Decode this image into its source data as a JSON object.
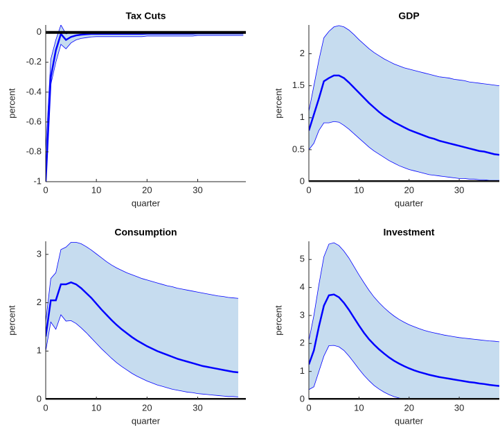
{
  "chart_data": [
    {
      "type": "line",
      "title": "Tax Cuts",
      "xlabel": "quarter",
      "ylabel": "percent",
      "x": [
        0,
        1,
        2,
        3,
        4,
        5,
        6,
        7,
        8,
        9,
        10,
        11,
        12,
        13,
        14,
        15,
        16,
        17,
        18,
        19,
        20,
        21,
        22,
        23,
        24,
        25,
        26,
        27,
        28,
        29,
        30,
        31,
        32,
        33,
        34,
        35,
        36,
        37,
        38,
        39
      ],
      "values": [
        -1,
        -0.3,
        -0.12,
        -0.01,
        -0.05,
        -0.03,
        -0.02,
        -0.015,
        -0.012,
        -0.01,
        -0.01,
        -0.01,
        -0.01,
        -0.01,
        -0.01,
        -0.01,
        -0.01,
        -0.01,
        -0.01,
        -0.01,
        -0.008,
        -0.008,
        -0.008,
        -0.008,
        -0.008,
        -0.008,
        -0.008,
        -0.008,
        -0.008,
        -0.008,
        -0.006,
        -0.006,
        -0.006,
        -0.006,
        -0.006,
        -0.006,
        -0.006,
        -0.006,
        -0.006,
        -0.006
      ],
      "upper": [
        -0.8,
        -0.18,
        -0.05,
        0.05,
        -0.01,
        0,
        0.005,
        0.005,
        0.005,
        0.006,
        0.005,
        0.005,
        0.005,
        0.005,
        0.005,
        0.005,
        0.005,
        0.005,
        0.005,
        0.005,
        0.005,
        0.005,
        0.005,
        0.005,
        0.005,
        0.005,
        0.005,
        0.005,
        0.005,
        0.005,
        0.005,
        0.005,
        0.005,
        0.005,
        0.005,
        0.005,
        0.005,
        0.005,
        0.005,
        0.005
      ],
      "lower": [
        -1,
        -0.35,
        -0.2,
        -0.08,
        -0.11,
        -0.07,
        -0.05,
        -0.04,
        -0.035,
        -0.03,
        -0.028,
        -0.028,
        -0.028,
        -0.028,
        -0.028,
        -0.028,
        -0.028,
        -0.028,
        -0.028,
        -0.028,
        -0.024,
        -0.024,
        -0.024,
        -0.024,
        -0.024,
        -0.024,
        -0.024,
        -0.024,
        -0.024,
        -0.024,
        -0.02,
        -0.02,
        -0.02,
        -0.02,
        -0.02,
        -0.02,
        -0.02,
        -0.02,
        -0.02,
        -0.02
      ],
      "xlim": [
        0,
        39.5
      ],
      "xticks": [
        0,
        10,
        20,
        30
      ],
      "ylim": [
        -1,
        0.05
      ],
      "yticks": [
        -1,
        -0.8,
        -0.6,
        -0.4,
        -0.2,
        0
      ],
      "zero_line": 0,
      "color": "#0000ff",
      "band_color": "#c6dcef"
    },
    {
      "type": "line",
      "title": "GDP",
      "xlabel": "quarter",
      "ylabel": "percent",
      "x": [
        0,
        1,
        2,
        3,
        4,
        5,
        6,
        7,
        8,
        9,
        10,
        11,
        12,
        13,
        14,
        15,
        16,
        17,
        18,
        19,
        20,
        21,
        22,
        23,
        24,
        25,
        26,
        27,
        28,
        29,
        30,
        31,
        32,
        33,
        34,
        35,
        36,
        37,
        38
      ],
      "values": [
        0.8,
        1.05,
        1.3,
        1.57,
        1.62,
        1.66,
        1.66,
        1.62,
        1.55,
        1.47,
        1.39,
        1.31,
        1.23,
        1.16,
        1.09,
        1.03,
        0.98,
        0.93,
        0.89,
        0.85,
        0.81,
        0.78,
        0.75,
        0.72,
        0.69,
        0.67,
        0.64,
        0.62,
        0.6,
        0.58,
        0.56,
        0.54,
        0.52,
        0.5,
        0.48,
        0.47,
        0.45,
        0.43,
        0.42
      ],
      "upper": [
        1.1,
        1.5,
        1.9,
        2.25,
        2.35,
        2.42,
        2.44,
        2.42,
        2.37,
        2.3,
        2.22,
        2.15,
        2.08,
        2.02,
        1.97,
        1.92,
        1.88,
        1.84,
        1.81,
        1.78,
        1.76,
        1.74,
        1.72,
        1.7,
        1.68,
        1.66,
        1.64,
        1.63,
        1.62,
        1.6,
        1.59,
        1.58,
        1.56,
        1.55,
        1.54,
        1.53,
        1.52,
        1.51,
        1.5
      ],
      "lower": [
        0.5,
        0.6,
        0.8,
        0.92,
        0.92,
        0.94,
        0.93,
        0.88,
        0.82,
        0.75,
        0.68,
        0.61,
        0.54,
        0.48,
        0.43,
        0.38,
        0.33,
        0.29,
        0.25,
        0.22,
        0.19,
        0.17,
        0.15,
        0.13,
        0.11,
        0.1,
        0.09,
        0.08,
        0.07,
        0.06,
        0.05,
        0.05,
        0.04,
        0.04,
        0.03,
        0.03,
        0.02,
        0.02,
        0.02
      ],
      "xlim": [
        0,
        38
      ],
      "xticks": [
        0,
        10,
        20,
        30
      ],
      "ylim": [
        0,
        2.45
      ],
      "yticks": [
        0,
        0.5,
        1,
        1.5,
        2
      ],
      "zero_line": 0,
      "color": "#0000ff",
      "band_color": "#c6dcef"
    },
    {
      "type": "line",
      "title": "Consumption",
      "xlabel": "quarter",
      "ylabel": "percent",
      "x": [
        0,
        1,
        2,
        3,
        4,
        5,
        6,
        7,
        8,
        9,
        10,
        11,
        12,
        13,
        14,
        15,
        16,
        17,
        18,
        19,
        20,
        21,
        22,
        23,
        24,
        25,
        26,
        27,
        28,
        29,
        30,
        31,
        32,
        33,
        34,
        35,
        36,
        37,
        38
      ],
      "values": [
        1.3,
        2.05,
        2.05,
        2.38,
        2.38,
        2.42,
        2.38,
        2.3,
        2.2,
        2.1,
        1.98,
        1.86,
        1.75,
        1.64,
        1.54,
        1.45,
        1.37,
        1.29,
        1.22,
        1.16,
        1.1,
        1.05,
        1.0,
        0.96,
        0.92,
        0.88,
        0.84,
        0.81,
        0.78,
        0.75,
        0.72,
        0.69,
        0.67,
        0.65,
        0.63,
        0.61,
        0.59,
        0.57,
        0.56
      ],
      "upper": [
        1.6,
        2.5,
        2.62,
        3.1,
        3.15,
        3.25,
        3.25,
        3.22,
        3.16,
        3.09,
        3.01,
        2.93,
        2.85,
        2.78,
        2.72,
        2.67,
        2.62,
        2.58,
        2.54,
        2.5,
        2.47,
        2.44,
        2.41,
        2.38,
        2.35,
        2.33,
        2.3,
        2.28,
        2.26,
        2.24,
        2.22,
        2.2,
        2.18,
        2.16,
        2.14,
        2.13,
        2.11,
        2.1,
        2.09
      ],
      "lower": [
        1.0,
        1.6,
        1.45,
        1.75,
        1.62,
        1.63,
        1.57,
        1.48,
        1.38,
        1.27,
        1.16,
        1.05,
        0.95,
        0.85,
        0.76,
        0.68,
        0.61,
        0.54,
        0.48,
        0.43,
        0.38,
        0.34,
        0.3,
        0.27,
        0.24,
        0.21,
        0.19,
        0.17,
        0.15,
        0.14,
        0.12,
        0.11,
        0.1,
        0.09,
        0.08,
        0.07,
        0.06,
        0.06,
        0.05
      ],
      "xlim": [
        0,
        39.5
      ],
      "xticks": [
        0,
        10,
        20,
        30
      ],
      "ylim": [
        0,
        3.27
      ],
      "yticks": [
        0,
        1,
        2,
        3
      ],
      "zero_line": 0,
      "color": "#0000ff",
      "band_color": "#c6dcef"
    },
    {
      "type": "line",
      "title": "Investment",
      "xlabel": "quarter",
      "ylabel": "percent",
      "x": [
        0,
        1,
        2,
        3,
        4,
        5,
        6,
        7,
        8,
        9,
        10,
        11,
        12,
        13,
        14,
        15,
        16,
        17,
        18,
        19,
        20,
        21,
        22,
        23,
        24,
        25,
        26,
        27,
        28,
        29,
        30,
        31,
        32,
        33,
        34,
        35,
        36,
        37,
        38
      ],
      "values": [
        1.25,
        1.75,
        2.6,
        3.35,
        3.72,
        3.75,
        3.65,
        3.45,
        3.2,
        2.92,
        2.64,
        2.38,
        2.15,
        1.96,
        1.79,
        1.64,
        1.5,
        1.38,
        1.28,
        1.19,
        1.11,
        1.04,
        0.98,
        0.93,
        0.88,
        0.84,
        0.8,
        0.77,
        0.74,
        0.71,
        0.68,
        0.65,
        0.62,
        0.6,
        0.57,
        0.55,
        0.52,
        0.5,
        0.48
      ],
      "upper": [
        2.1,
        3.0,
        4.1,
        5.1,
        5.55,
        5.6,
        5.5,
        5.3,
        5.05,
        4.75,
        4.45,
        4.17,
        3.9,
        3.66,
        3.46,
        3.28,
        3.12,
        2.98,
        2.86,
        2.76,
        2.67,
        2.6,
        2.53,
        2.47,
        2.42,
        2.38,
        2.34,
        2.3,
        2.27,
        2.24,
        2.21,
        2.19,
        2.17,
        2.15,
        2.13,
        2.11,
        2.09,
        2.08,
        2.06
      ],
      "lower": [
        0.35,
        0.45,
        1.0,
        1.55,
        1.92,
        1.93,
        1.88,
        1.75,
        1.55,
        1.32,
        1.08,
        0.86,
        0.67,
        0.5,
        0.37,
        0.26,
        0.17,
        0.1,
        0.05,
        0.01,
        0,
        0,
        0,
        0,
        0,
        0,
        0,
        0,
        0,
        0,
        0,
        0,
        0,
        0,
        0,
        0,
        0,
        0,
        0
      ],
      "xlim": [
        0,
        38
      ],
      "xticks": [
        0,
        10,
        20,
        30
      ],
      "ylim": [
        0,
        5.65
      ],
      "yticks": [
        0,
        1,
        2,
        3,
        4,
        5
      ],
      "zero_line": 0,
      "color": "#0000ff",
      "band_color": "#c6dcef"
    }
  ]
}
